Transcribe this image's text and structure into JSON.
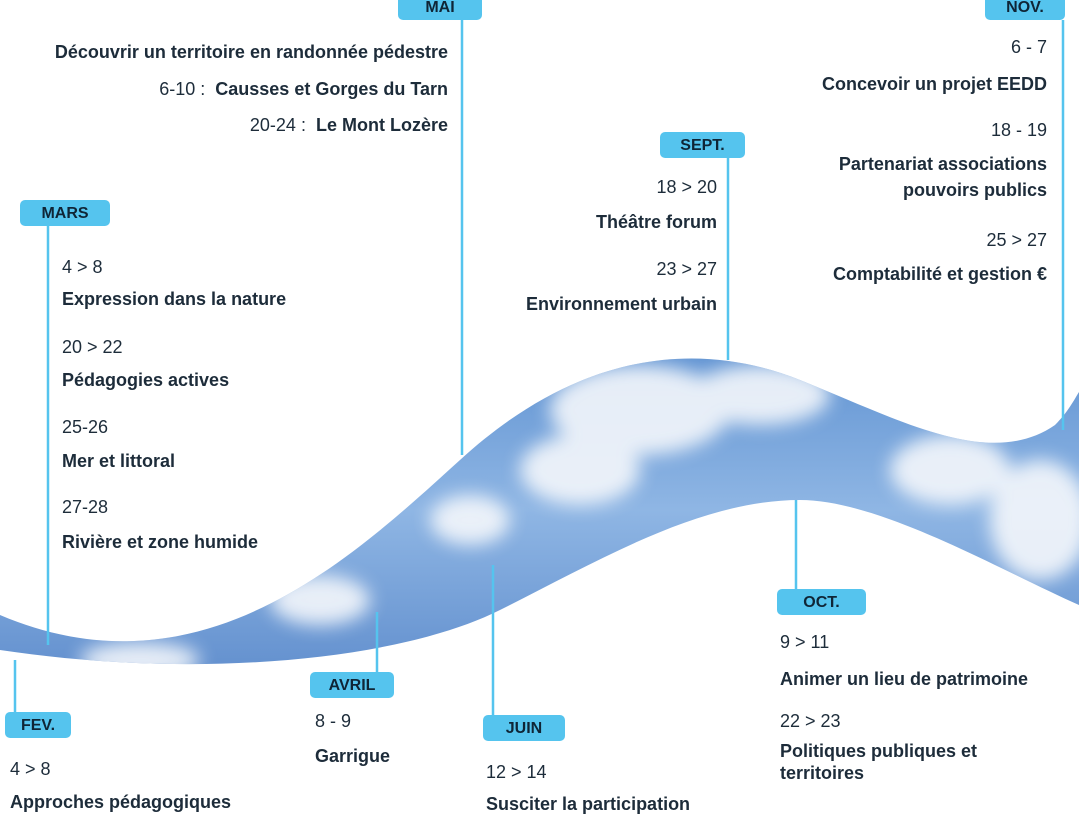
{
  "months": [
    {
      "label": "FEV.",
      "events": [
        {
          "dates": "4 > 8",
          "title": [
            "Approches pédagogiques"
          ]
        }
      ]
    },
    {
      "label": "MARS",
      "events": [
        {
          "dates": "4 > 8",
          "title": [
            "Expression dans la nature"
          ]
        },
        {
          "dates": "20 > 22",
          "title": [
            "Pédagogies actives"
          ]
        },
        {
          "dates": "25-26",
          "title": [
            "Mer et littoral"
          ]
        },
        {
          "dates": "27-28",
          "title": [
            "Rivière et zone humide"
          ]
        }
      ]
    },
    {
      "label": "AVRIL",
      "events": [
        {
          "dates": "8 - 9",
          "title": [
            "Garrigue"
          ]
        }
      ]
    },
    {
      "label": "MAI",
      "intro": "Découvrir un territoire en randonnée pédestre",
      "events": [
        {
          "dates": "6-10",
          "separator": ":",
          "title": [
            "Causses et Gorges du Tarn"
          ]
        },
        {
          "dates": "20-24",
          "separator": ":",
          "title": [
            "Le Mont Lozère"
          ]
        }
      ]
    },
    {
      "label": "JUIN",
      "events": [
        {
          "dates": "12 > 14",
          "title": [
            "Susciter la participation"
          ]
        }
      ]
    },
    {
      "label": "SEPT.",
      "events": [
        {
          "dates": "18 > 20",
          "title": [
            "Théâtre forum"
          ]
        },
        {
          "dates": "23 > 27",
          "title": [
            "Environnement urbain"
          ]
        }
      ]
    },
    {
      "label": "OCT.",
      "events": [
        {
          "dates": "9 > 11",
          "title": [
            "Animer un lieu de patrimoine"
          ]
        },
        {
          "dates": "22 > 23",
          "title": [
            "Politiques publiques et",
            "territoires"
          ]
        }
      ]
    },
    {
      "label": "NOV.",
      "events": [
        {
          "dates": "6 - 7",
          "title": [
            "Concevoir un projet EEDD"
          ]
        },
        {
          "dates": "18 - 19",
          "title": [
            "Partenariat associations",
            "pouvoirs publics"
          ]
        },
        {
          "dates": "25 > 27",
          "title": [
            "Comptabilité et gestion €"
          ]
        }
      ]
    }
  ]
}
